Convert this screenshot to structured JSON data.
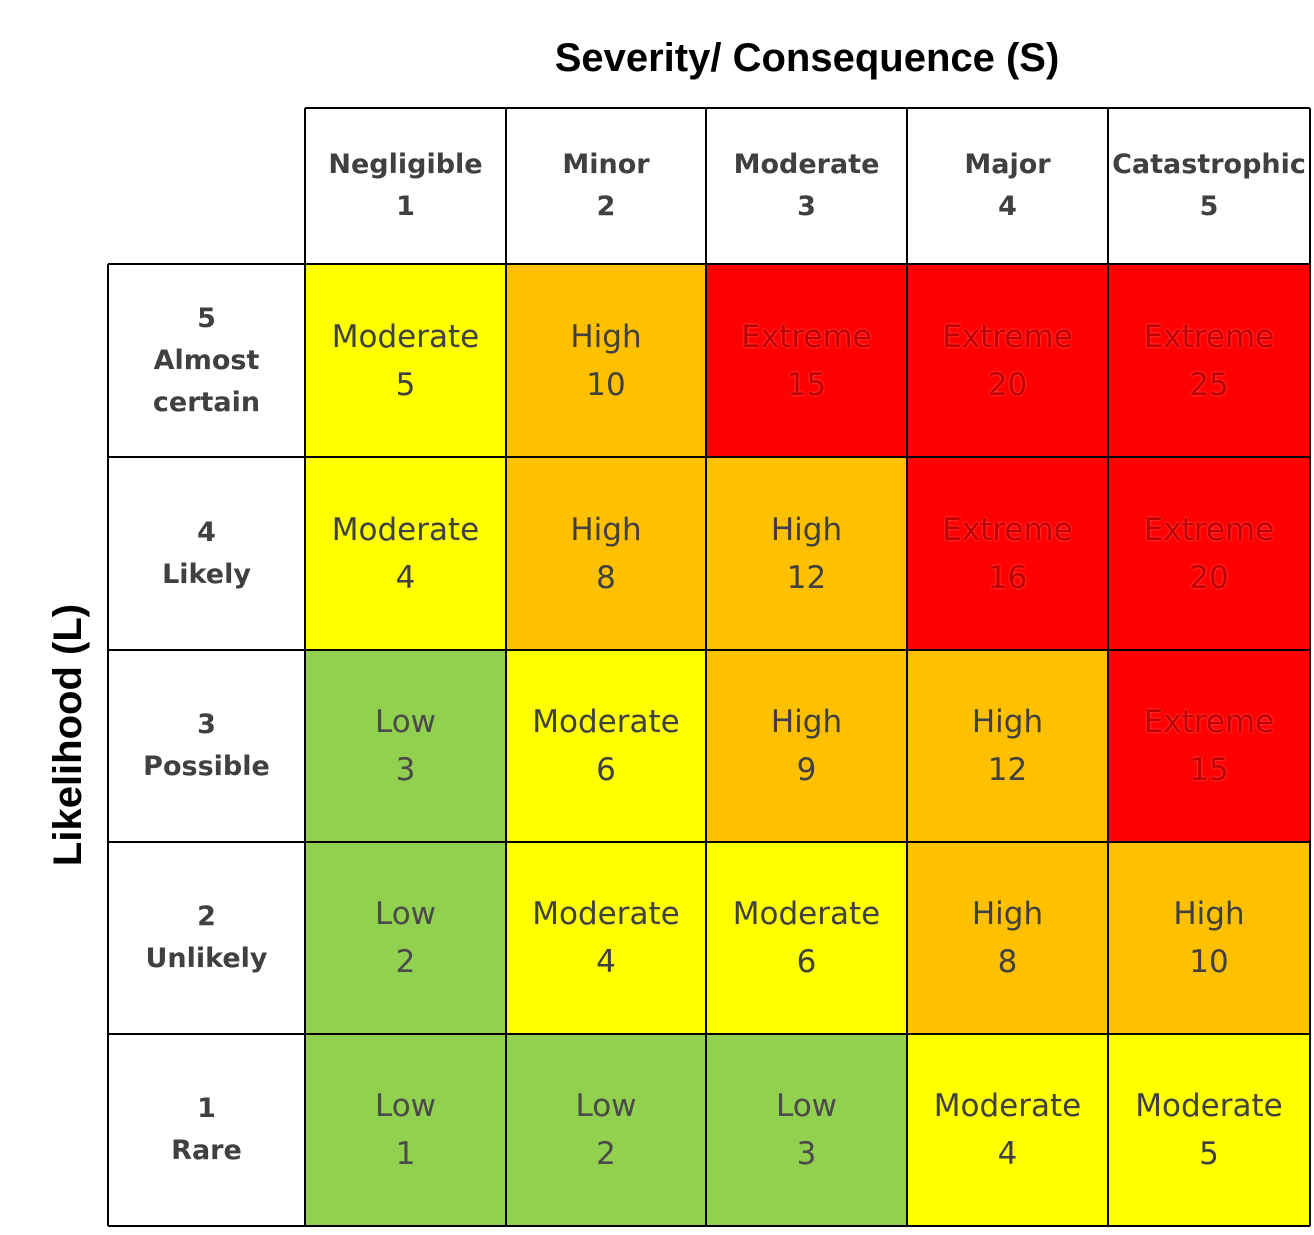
{
  "chart_data": {
    "type": "table",
    "title": "",
    "xlabel": "Severity/ Consequence (S)",
    "ylabel": "Likelihood (L)",
    "columns": [
      {
        "name": "Negligible",
        "value": "1"
      },
      {
        "name": "Minor",
        "value": "2"
      },
      {
        "name": "Moderate",
        "value": "3"
      },
      {
        "name": "Major",
        "value": "4"
      },
      {
        "name": "Catastrophic",
        "value": "5"
      }
    ],
    "rows": [
      {
        "value": "5",
        "name_lines": [
          "Almost",
          "certain"
        ],
        "cells": [
          {
            "level": "Moderate",
            "score": 5
          },
          {
            "level": "High",
            "score": 10
          },
          {
            "level": "Extreme",
            "score": 15
          },
          {
            "level": "Extreme",
            "score": 20
          },
          {
            "level": "Extreme",
            "score": 25
          }
        ]
      },
      {
        "value": "4",
        "name_lines": [
          "Likely"
        ],
        "cells": [
          {
            "level": "Moderate",
            "score": 4
          },
          {
            "level": "High",
            "score": 8
          },
          {
            "level": "High",
            "score": 12
          },
          {
            "level": "Extreme",
            "score": 16
          },
          {
            "level": "Extreme",
            "score": 20
          }
        ]
      },
      {
        "value": "3",
        "name_lines": [
          "Possible"
        ],
        "cells": [
          {
            "level": "Low",
            "score": 3
          },
          {
            "level": "Moderate",
            "score": 6
          },
          {
            "level": "High",
            "score": 9
          },
          {
            "level": "High",
            "score": 12
          },
          {
            "level": "Extreme",
            "score": 15
          }
        ]
      },
      {
        "value": "2",
        "name_lines": [
          "Unlikely"
        ],
        "cells": [
          {
            "level": "Low",
            "score": 2
          },
          {
            "level": "Moderate",
            "score": 4
          },
          {
            "level": "Moderate",
            "score": 6
          },
          {
            "level": "High",
            "score": 8
          },
          {
            "level": "High",
            "score": 10
          }
        ]
      },
      {
        "value": "1",
        "name_lines": [
          "Rare"
        ],
        "cells": [
          {
            "level": "Low",
            "score": 1
          },
          {
            "level": "Low",
            "score": 2
          },
          {
            "level": "Low",
            "score": 3
          },
          {
            "level": "Moderate",
            "score": 4
          },
          {
            "level": "Moderate",
            "score": 5
          }
        ]
      }
    ],
    "colors": {
      "Low": "#92d050",
      "Moderate": "#ffff00",
      "High": "#ffc000",
      "Extreme": "#ff0000",
      "extreme_text": "#c00000"
    }
  }
}
